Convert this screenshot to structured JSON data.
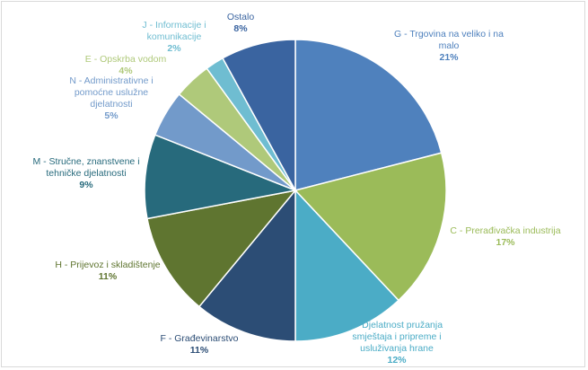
{
  "chart_data": {
    "type": "pie",
    "slices": [
      {
        "category": "G - Trgovina na veliko i na malo",
        "label_lines": [
          "G - Trgovina na veliko i na",
          "malo"
        ],
        "value": 21,
        "percent_label": "21%",
        "color": "#4f81bd",
        "text_color": "#4f81bd"
      },
      {
        "category": "C - Prerađivačka industrija",
        "label_lines": [
          "C - Prerađivačka industrija"
        ],
        "value": 17,
        "percent_label": "17%",
        "color": "#9bbb59",
        "text_color": "#9bbb59"
      },
      {
        "category": "I - Djelatnost pružanja smještaja i pripreme i usluživanja hrane",
        "label_lines": [
          "I - Djelatnost pružanja",
          "smještaja i pripreme i",
          "usluživanja hrane"
        ],
        "value": 12,
        "percent_label": "12%",
        "color": "#4bacc6",
        "text_color": "#4bacc6"
      },
      {
        "category": "F - Građevinarstvo",
        "label_lines": [
          "F - Građevinarstvo"
        ],
        "value": 11,
        "percent_label": "11%",
        "color": "#2c4d75",
        "text_color": "#2c4d75"
      },
      {
        "category": "H - Prijevoz i skladištenje",
        "label_lines": [
          "H - Prijevoz i skladištenje"
        ],
        "value": 11,
        "percent_label": "11%",
        "color": "#5f7530",
        "text_color": "#5f7530"
      },
      {
        "category": "M - Stručne, znanstvene i tehničke djelatnosti",
        "label_lines": [
          "M - Stručne, znanstvene i",
          "tehničke djelatnosti"
        ],
        "value": 9,
        "percent_label": "9%",
        "color": "#276a7c",
        "text_color": "#276a7c"
      },
      {
        "category": "N - Administrativne i pomoćne uslužne djelatnosti",
        "label_lines": [
          "N - Administrativne i",
          "pomoćne uslužne",
          "djelatnosti"
        ],
        "value": 5,
        "percent_label": "5%",
        "color": "#729aca",
        "text_color": "#729aca"
      },
      {
        "category": "E - Opskrba vodom",
        "label_lines": [
          "E - Opskrba vodom"
        ],
        "value": 4,
        "percent_label": "4%",
        "color": "#afc97a",
        "text_color": "#afc97a"
      },
      {
        "category": "J - Informacije i komunikacije",
        "label_lines": [
          "J - Informacije i",
          "komunikacije"
        ],
        "value": 2,
        "percent_label": "2%",
        "color": "#6fbdd1",
        "text_color": "#6fbdd1"
      },
      {
        "category": "Ostalo",
        "label_lines": [
          "Ostalo"
        ],
        "value": 8,
        "percent_label": "8%",
        "color": "#3a64a0",
        "text_color": "#3a64a0"
      }
    ],
    "title": "",
    "legend": "none",
    "start": "top, clockwise",
    "border_color": "#d9d9d9",
    "slice_separator_color": "#ffffff"
  }
}
